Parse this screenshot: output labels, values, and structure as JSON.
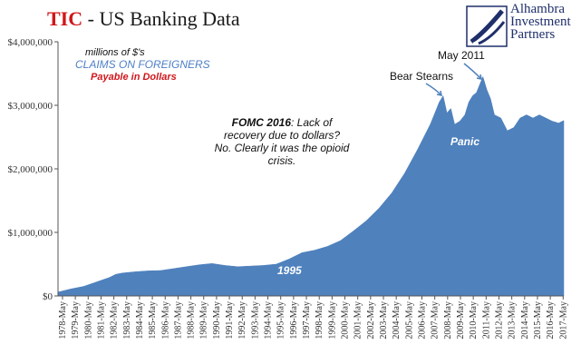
{
  "header": {
    "title_prefix": "TIC",
    "title_rest": " - US Banking Data",
    "logo_lines": [
      "Alhambra",
      "Investment",
      "Partners"
    ]
  },
  "annotations": {
    "units": "millions of $'s",
    "series_label": "CLAIMS ON FOREIGNERS",
    "payable": "Payable in Dollars",
    "fomc_bold": "FOMC 2016",
    "fomc_rest": ": Lack of recovery due to dollars? No. Clearly it was the opioid crisis.",
    "bear_stearns": "Bear Stearns",
    "may_2011": "May 2011",
    "panic": "Panic",
    "year_1995": "1995"
  },
  "colors": {
    "area": "#4f81bd",
    "title_accent": "#d0161b",
    "series_label": "#4c7fc7",
    "logo": "#1f2f6b"
  },
  "chart_data": {
    "type": "area",
    "title": "TIC - US Banking Data",
    "ylabel": "millions of $'s",
    "ylim": [
      0,
      4000000
    ],
    "y_ticks": [
      "$0",
      "$1,000,000",
      "$2,000,000",
      "$3,000,000",
      "$4,000,000"
    ],
    "x_ticks": [
      "1978-May",
      "1979-May",
      "1980-May",
      "1981-May",
      "1982-May",
      "1983-May",
      "1984-May",
      "1985-May",
      "1986-May",
      "1987-May",
      "1988-May",
      "1989-May",
      "1990-May",
      "1991-May",
      "1992-May",
      "1993-May",
      "1994-May",
      "1995-May",
      "1996-May",
      "1997-May",
      "1998-May",
      "1999-May",
      "2000-May",
      "2001-May",
      "2002-May",
      "2003-May",
      "2004-May",
      "2005-May",
      "2006-May",
      "2007-May",
      "2008-May",
      "2009-May",
      "2010-May",
      "2011-May",
      "2012-May",
      "2013-May",
      "2014-May",
      "2015-May",
      "2016-May",
      "2017-May"
    ],
    "series": [
      {
        "name": "CLAIMS ON FOREIGNERS",
        "x": [
          1978.0,
          1979.0,
          1980.0,
          1981.0,
          1982.0,
          1982.5,
          1983.0,
          1984.0,
          1985.0,
          1986.0,
          1987.0,
          1988.0,
          1989.0,
          1990.0,
          1991.0,
          1992.0,
          1993.0,
          1994.0,
          1995.0,
          1996.0,
          1997.0,
          1998.0,
          1999.0,
          2000.0,
          2001.0,
          2002.0,
          2003.0,
          2004.0,
          2005.0,
          2006.0,
          2007.0,
          2007.4,
          2007.7,
          2008.0,
          2008.3,
          2008.6,
          2008.9,
          2009.3,
          2009.7,
          2010.0,
          2010.3,
          2010.6,
          2010.9,
          2011.1,
          2011.4,
          2011.7,
          2012.0,
          2012.5,
          2013.0,
          2013.5,
          2014.0,
          2014.5,
          2015.0,
          2015.5,
          2016.0,
          2016.5,
          2017.0,
          2017.4
        ],
        "values": [
          60000,
          110000,
          150000,
          220000,
          290000,
          340000,
          360000,
          380000,
          395000,
          400000,
          430000,
          460000,
          490000,
          510000,
          480000,
          460000,
          470000,
          480000,
          500000,
          580000,
          680000,
          720000,
          780000,
          870000,
          1020000,
          1180000,
          1380000,
          1620000,
          1930000,
          2300000,
          2700000,
          2900000,
          3050000,
          3150000,
          2880000,
          2950000,
          2700000,
          2750000,
          2850000,
          3050000,
          3150000,
          3200000,
          3350000,
          3450000,
          3250000,
          3100000,
          2850000,
          2800000,
          2600000,
          2650000,
          2800000,
          2850000,
          2800000,
          2850000,
          2800000,
          2750000,
          2720000,
          2760000
        ]
      }
    ],
    "grid": false,
    "legend": "none"
  }
}
